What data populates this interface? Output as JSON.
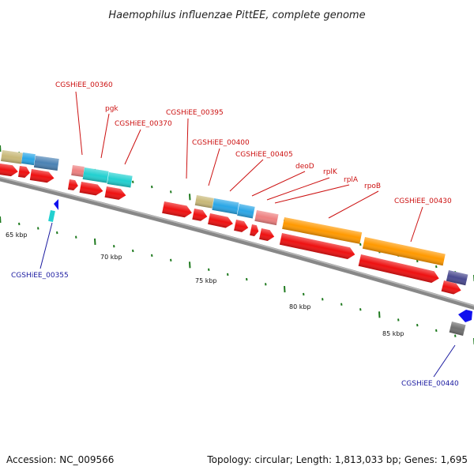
{
  "title": "Haemophilus influenzae PittEE, complete genome",
  "footer": {
    "accession": "Accession: NC_009566",
    "summary": "Topology: circular; Length: 1,813,033 bp; Genes: 1,695"
  },
  "scale_labels": [
    "65 kbp",
    "70 kbp",
    "75 kbp",
    "80 kbp",
    "85 kbp"
  ],
  "gene_labels": [
    {
      "id": "CGSHiEE_00360",
      "color": "#cc1111"
    },
    {
      "id": "pgk",
      "color": "#cc1111"
    },
    {
      "id": "CGSHiEE_00370",
      "color": "#cc1111"
    },
    {
      "id": "CGSHiEE_00395",
      "color": "#cc1111"
    },
    {
      "id": "CGSHiEE_00400",
      "color": "#cc1111"
    },
    {
      "id": "CGSHiEE_00405",
      "color": "#cc1111"
    },
    {
      "id": "deoD",
      "color": "#cc1111"
    },
    {
      "id": "rplK",
      "color": "#cc1111"
    },
    {
      "id": "rplA",
      "color": "#cc1111"
    },
    {
      "id": "rpoB",
      "color": "#cc1111"
    },
    {
      "id": "CGSHiEE_00430",
      "color": "#cc1111"
    },
    {
      "id": "CGSHiEE_00355",
      "color": "#1a1aa0"
    },
    {
      "id": "CGSHiEE_00440",
      "color": "#1a1aa0"
    }
  ],
  "colors": {
    "backbone": "#888888",
    "cds_forward": "#ee1111",
    "khaki": "#c8b878",
    "blue": "#2aa6e6",
    "steel": "#4a82b4",
    "salmon": "#ee8080",
    "cyan": "#22d0d0",
    "orange": "#ff9900",
    "navy": "#4a4a90",
    "grey": "#707070",
    "tick": "#1f7a1f"
  }
}
